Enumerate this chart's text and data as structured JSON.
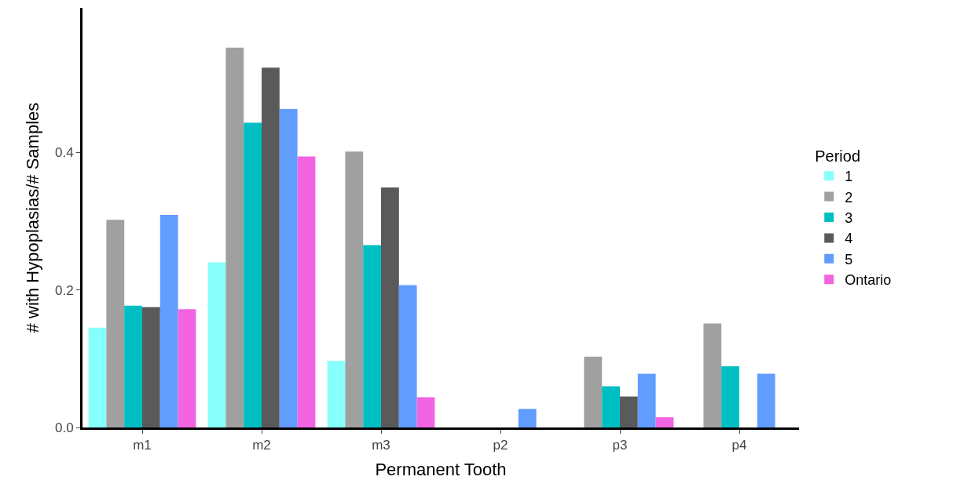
{
  "chart_data": {
    "type": "bar",
    "xlabel": "Permanent Tooth",
    "ylabel": "# with Hypoplasias/# Samples",
    "legend_title": "Period",
    "legend": "right",
    "categories": [
      "m1",
      "m2",
      "m3",
      "p2",
      "p3",
      "p4"
    ],
    "series": [
      {
        "name": "1",
        "color": "#87fffc",
        "values": [
          0.145,
          0.24,
          0.097,
          0,
          0,
          0
        ]
      },
      {
        "name": "2",
        "color": "#a0a0a0",
        "values": [
          0.302,
          0.552,
          0.401,
          0,
          0.103,
          0.151
        ]
      },
      {
        "name": "3",
        "color": "#00bfc2",
        "values": [
          0.177,
          0.443,
          0.265,
          0,
          0.06,
          0.089
        ]
      },
      {
        "name": "4",
        "color": "#5a5a5a",
        "values": [
          0.175,
          0.523,
          0.349,
          0,
          0.045,
          0
        ]
      },
      {
        "name": "5",
        "color": "#619cff",
        "values": [
          0.309,
          0.463,
          0.207,
          0.027,
          0.078,
          0.078
        ]
      },
      {
        "name": "Ontario",
        "color": "#f264e1",
        "values": [
          0.172,
          0.394,
          0.044,
          0,
          0.015,
          0
        ]
      }
    ],
    "ylim": [
      0,
      0.61
    ],
    "yticks": [
      {
        "value": 0,
        "label": "0.0"
      },
      {
        "value": 0.2,
        "label": "0.2"
      },
      {
        "value": 0.4,
        "label": "0.4"
      }
    ]
  }
}
